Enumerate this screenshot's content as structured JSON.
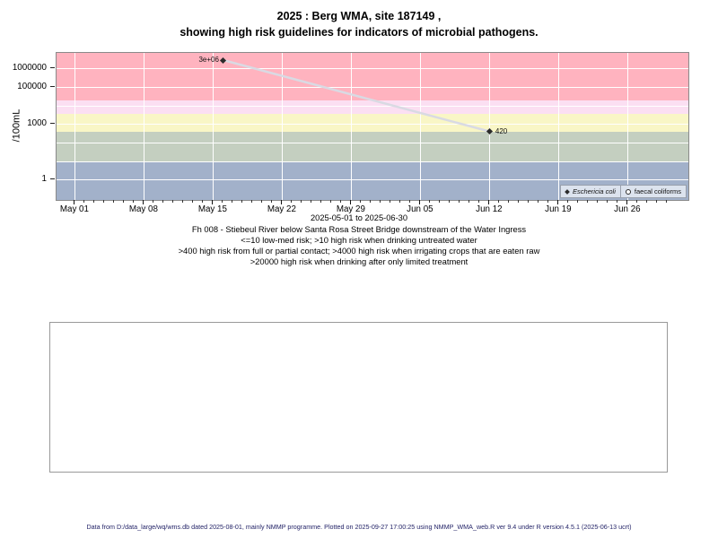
{
  "title": {
    "line1": "2025 : Berg WMA, site 187149 ,",
    "line2": "showing high risk guidelines for indicators of microbial pathogens."
  },
  "captions": {
    "line1": "Fh 008 - Stiebeul River below Santa Rosa Street Bridge downstream of the Water Ingress",
    "line2": "<=10 low-med risk; >10 high risk when drinking untreated water",
    "line3": ">400 high risk from full or partial contact; >4000 high risk when irrigating crops that are eaten raw",
    "line4": ">20000 high risk when drinking after only limited treatment"
  },
  "footer": {
    "text": "Data from D:/data_large/wq/wms.db dated 2025-08-01, mainly NMMP programme. Plotted on 2025-09-27 17:00:25 using NMMP_WMA_web.R ver 9.4 under R version 4.5.1 (2025-06-13 ucrt)"
  },
  "chart_data": {
    "type": "scatter",
    "title": "2025 : Berg WMA, site 187149 , showing high risk guidelines for indicators of microbial pathogens.",
    "x_axis": {
      "start_date": "2025-05-01",
      "end_date": "2025-06-30",
      "sublabel": "2025-05-01 to 2025-06-30",
      "xlim_days": [
        -1.9,
        62.1
      ],
      "ticks": [
        {
          "label": "May 01",
          "day": 0
        },
        {
          "label": "May 08",
          "day": 7
        },
        {
          "label": "May 15",
          "day": 14
        },
        {
          "label": "May 22",
          "day": 21
        },
        {
          "label": "May 29",
          "day": 28
        },
        {
          "label": "Jun 05",
          "day": 35
        },
        {
          "label": "Jun 12",
          "day": 42
        },
        {
          "label": "Jun 19",
          "day": 49
        },
        {
          "label": "Jun 26",
          "day": 56
        }
      ],
      "minor_day_range": [
        0,
        60
      ]
    },
    "y_axis": {
      "label": "/100mL",
      "scale": "log10",
      "ylim": [
        0.086,
        7400000
      ],
      "ticks": [
        {
          "label": "1000000",
          "value": 1000000
        },
        {
          "label": "100000",
          "value": 100000
        },
        {
          "label": "1000",
          "value": 1000
        },
        {
          "label": "1",
          "value": 1
        }
      ],
      "gridline_values": [
        1,
        10,
        100,
        1000,
        10000,
        100000,
        1000000
      ]
    },
    "risk_bands": [
      {
        "name": "low-med risk (<=10)",
        "from": 0.086,
        "to": 10,
        "color": "#a2b1ca"
      },
      {
        "name": "high risk when drinking untreated water (>10)",
        "from": 10,
        "to": 400,
        "color": "#c4cfc0"
      },
      {
        "name": "high risk from full or partial contact (>400)",
        "from": 400,
        "to": 4000,
        "color": "#f9f6c6"
      },
      {
        "name": "high risk when irrigating crops that are eaten raw (>4000)",
        "from": 4000,
        "to": 20000,
        "color": "#fbdff2"
      },
      {
        "name": "high risk when drinking after only limited treatment (>20000)",
        "from": 20000,
        "to": 7400000,
        "color": "#ffb3bf"
      }
    ],
    "series": [
      {
        "name": "Eschericia coli",
        "marker": "filled-diamond",
        "marker_color": "#2b2b2b",
        "line_color": "#d9dae3",
        "points": [
          {
            "date": "2025-05-16",
            "day": 15,
            "value": 3000000,
            "label": "3e+06",
            "label_side": "left"
          },
          {
            "date": "2025-06-12",
            "day": 42,
            "value": 420,
            "label": "420",
            "label_side": "right"
          }
        ]
      },
      {
        "name": "faecal coliforms",
        "marker": "open-circle",
        "marker_color": "#2b2b2b",
        "points": []
      }
    ],
    "legend": {
      "position": "bottom-right",
      "background": "#dce3ee",
      "entries": [
        {
          "marker": "filled-diamond",
          "label": "Eschericia coli",
          "italic": true
        },
        {
          "marker": "open-circle",
          "label": "faecal coliforms",
          "italic": false
        }
      ]
    }
  },
  "colors": {
    "plot_border": "#8a8a8a",
    "gridline": "#ffffff",
    "footer_text": "#242468"
  }
}
